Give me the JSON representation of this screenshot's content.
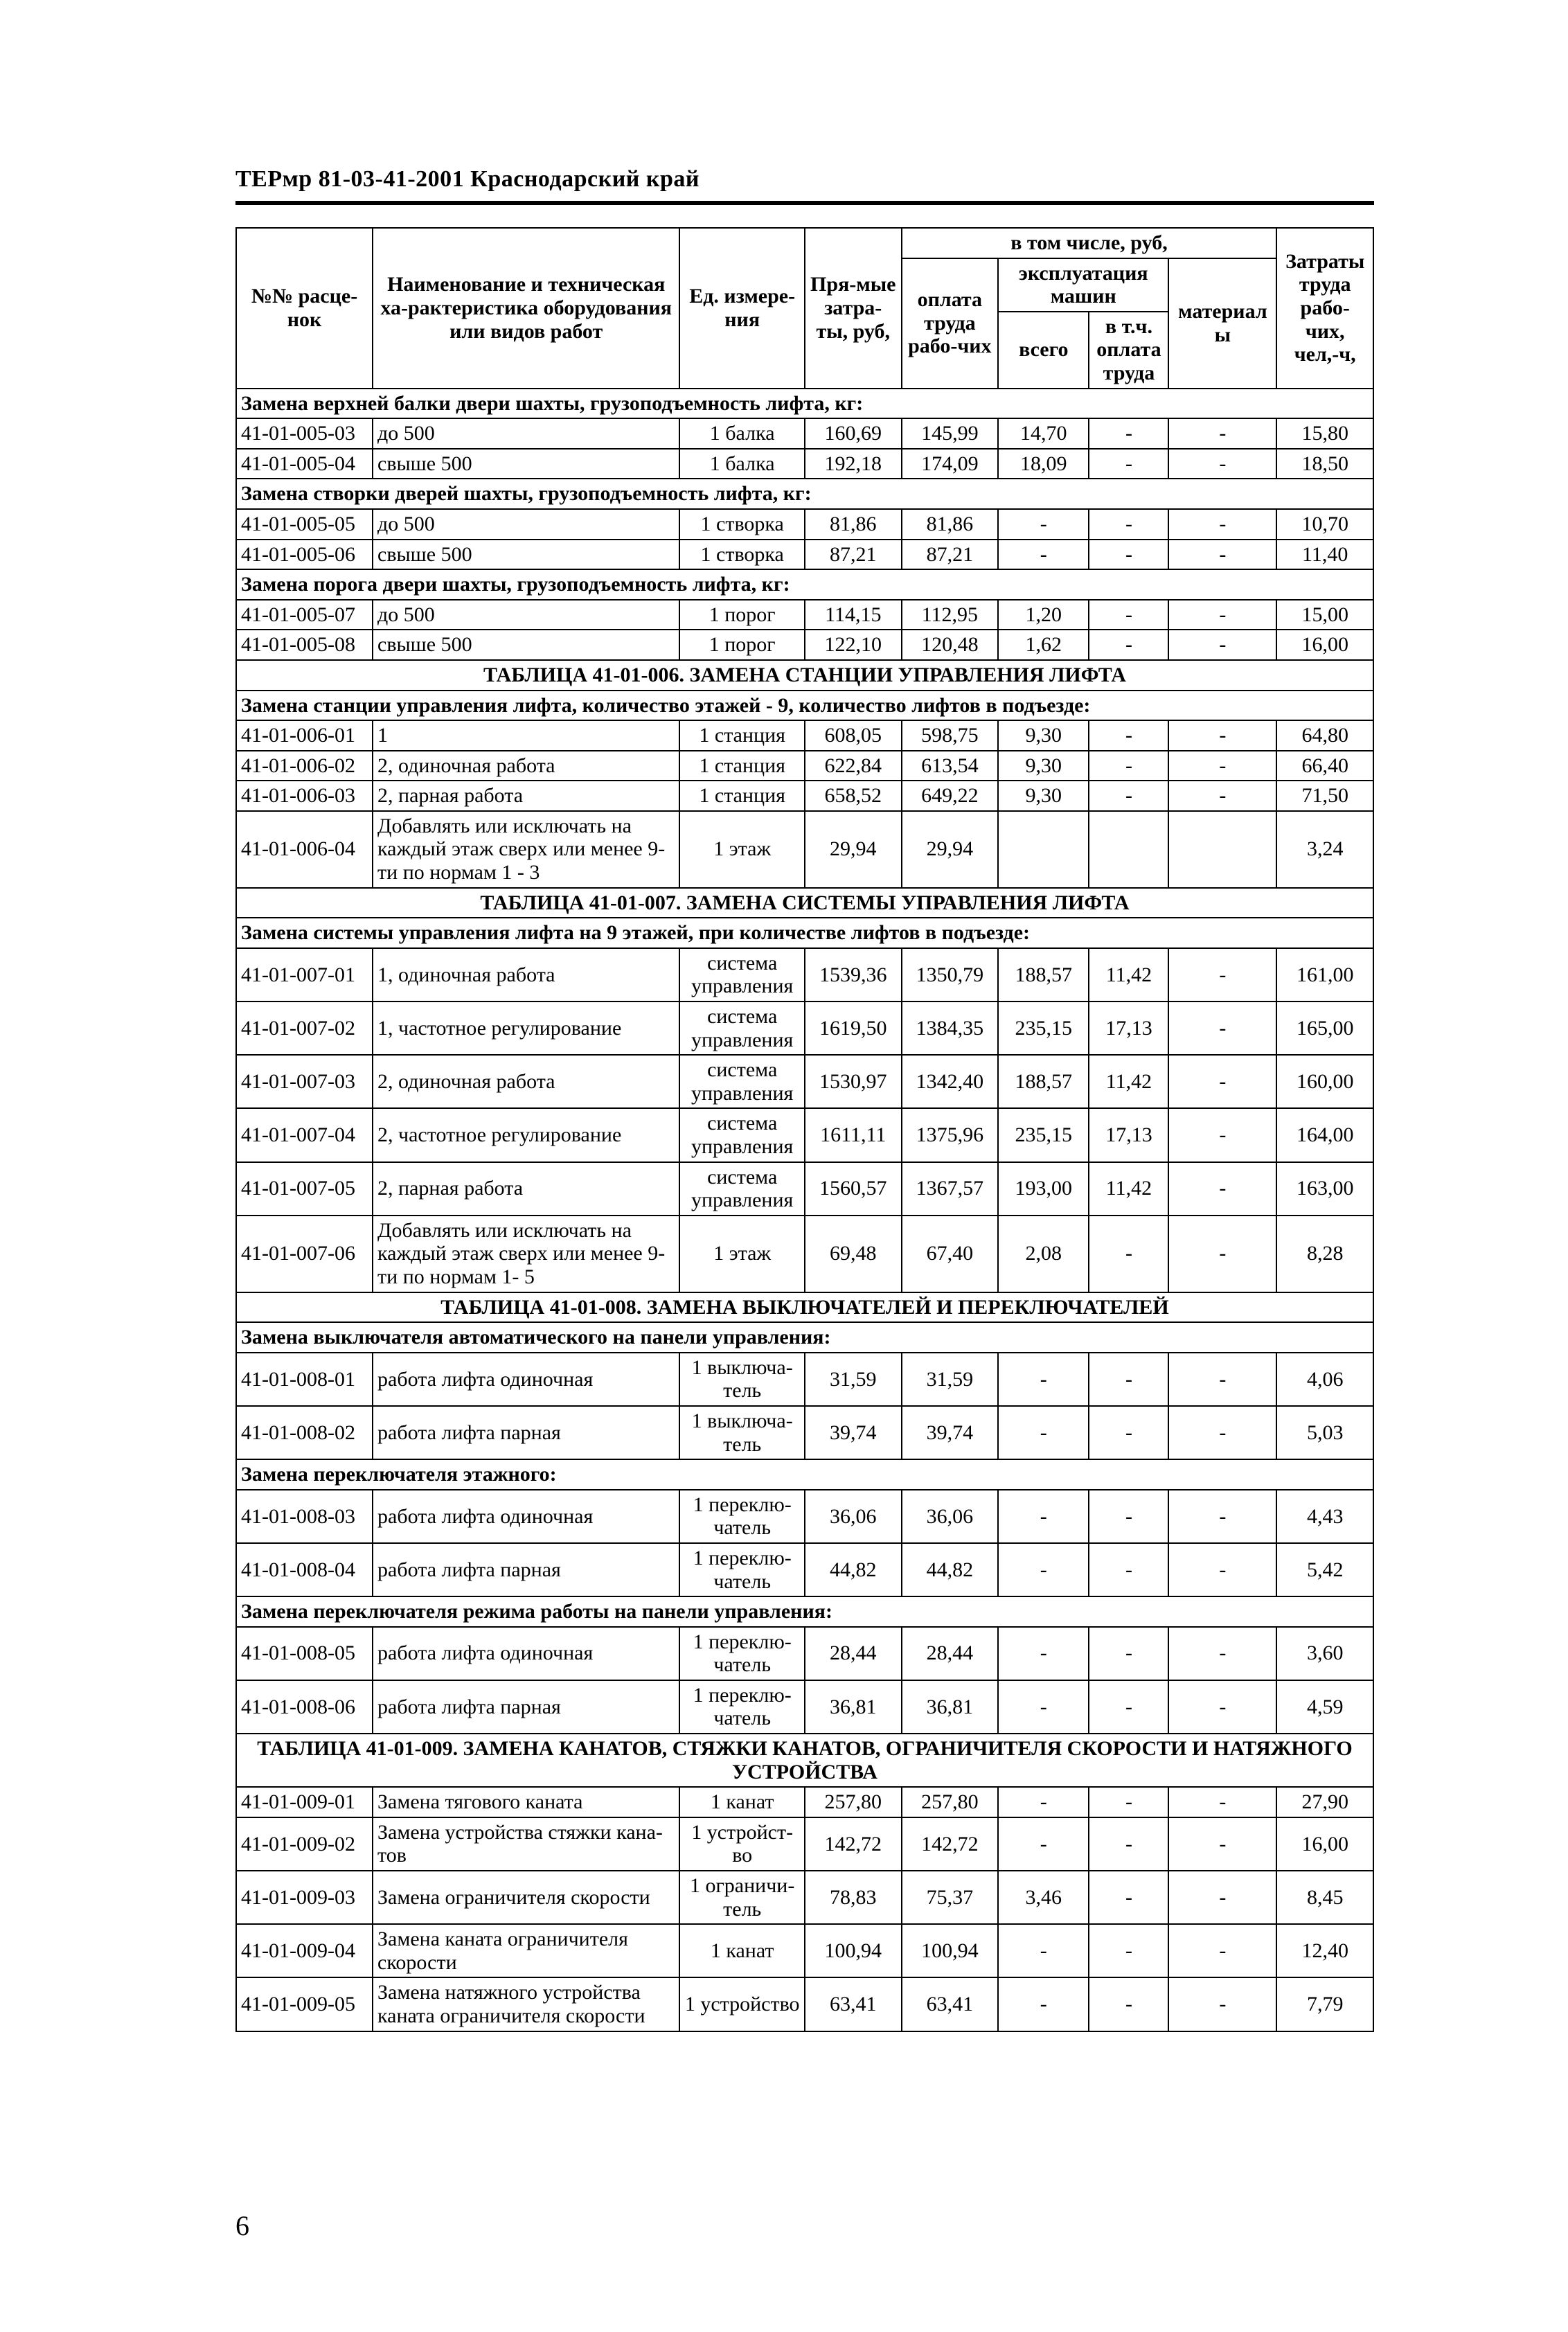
{
  "running_head": "ТЕРмр 81-03-41-2001   Краснодарский край",
  "page_number": "6",
  "head": {
    "col1": "№№ расце-нок",
    "col2": "Наименование и техническая ха-рактеристика оборудования или видов работ",
    "col3": "Ед. измере-ния",
    "col4": "Пря-мые затра-ты, руб,",
    "group5": "в том числе, руб,",
    "col5": "оплата труда рабо-чих",
    "group6": "эксплуатация машин",
    "col6a": "всего",
    "col6b": "в т.ч. оплата труда",
    "col7": "материалы",
    "col8": "Затраты труда рабо-чих, чел,-ч,"
  },
  "rows": [
    {
      "type": "section",
      "text": "Замена верхней балки двери шахты, грузоподъемность лифта, кг:"
    },
    {
      "type": "data",
      "c": [
        "41-01-005-03",
        "до 500",
        "1 балка",
        "160,69",
        "145,99",
        "14,70",
        "-",
        "-",
        "15,80"
      ]
    },
    {
      "type": "data",
      "c": [
        "41-01-005-04",
        "свыше 500",
        "1 балка",
        "192,18",
        "174,09",
        "18,09",
        "-",
        "-",
        "18,50"
      ]
    },
    {
      "type": "section",
      "text": "Замена створки дверей шахты, грузоподъемность лифта, кг:"
    },
    {
      "type": "data",
      "c": [
        "41-01-005-05",
        "до 500",
        "1 створка",
        "81,86",
        "81,86",
        "-",
        "-",
        "-",
        "10,70"
      ]
    },
    {
      "type": "data",
      "c": [
        "41-01-005-06",
        "свыше 500",
        "1 створка",
        "87,21",
        "87,21",
        "-",
        "-",
        "-",
        "11,40"
      ]
    },
    {
      "type": "section",
      "text": "Замена порога двери шахты, грузоподъемность лифта, кг:"
    },
    {
      "type": "data",
      "c": [
        "41-01-005-07",
        "до 500",
        "1 порог",
        "114,15",
        "112,95",
        "1,20",
        "-",
        "-",
        "15,00"
      ]
    },
    {
      "type": "data",
      "c": [
        "41-01-005-08",
        "свыше 500",
        "1 порог",
        "122,10",
        "120,48",
        "1,62",
        "-",
        "-",
        "16,00"
      ]
    },
    {
      "type": "title",
      "text": "ТАБЛИЦА 41-01-006. ЗАМЕНА СТАНЦИИ УПРАВЛЕНИЯ ЛИФТА"
    },
    {
      "type": "section",
      "text": "Замена станции управления лифта, количество этажей - 9, количество лифтов в подъезде:"
    },
    {
      "type": "data",
      "c": [
        "41-01-006-01",
        "1",
        "1 станция",
        "608,05",
        "598,75",
        "9,30",
        "-",
        "-",
        "64,80"
      ]
    },
    {
      "type": "data",
      "c": [
        "41-01-006-02",
        "2, одиночная работа",
        "1 станция",
        "622,84",
        "613,54",
        "9,30",
        "-",
        "-",
        "66,40"
      ]
    },
    {
      "type": "data",
      "c": [
        "41-01-006-03",
        "2, парная работа",
        "1 станция",
        "658,52",
        "649,22",
        "9,30",
        "-",
        "-",
        "71,50"
      ]
    },
    {
      "type": "data",
      "c": [
        "41-01-006-04",
        "Добавлять или исключать на каждый этаж сверх или менее 9-ти по нормам 1 - 3",
        "1 этаж",
        "29,94",
        "29,94",
        "",
        "",
        "",
        "3,24"
      ]
    },
    {
      "type": "title",
      "text": "ТАБЛИЦА 41-01-007. ЗАМЕНА СИСТЕМЫ УПРАВЛЕНИЯ ЛИФТА"
    },
    {
      "type": "section",
      "text": "Замена системы управления лифта на 9 этажей, при количестве лифтов в подъезде:"
    },
    {
      "type": "data",
      "c": [
        "41-01-007-01",
        "1, одиночная работа",
        "система управления",
        "1539,36",
        "1350,79",
        "188,57",
        "11,42",
        "-",
        "161,00"
      ]
    },
    {
      "type": "data",
      "c": [
        "41-01-007-02",
        "1, частотное регулирование",
        "система управления",
        "1619,50",
        "1384,35",
        "235,15",
        "17,13",
        "-",
        "165,00"
      ]
    },
    {
      "type": "data",
      "c": [
        "41-01-007-03",
        "2, одиночная работа",
        "система управления",
        "1530,97",
        "1342,40",
        "188,57",
        "11,42",
        "-",
        "160,00"
      ]
    },
    {
      "type": "data",
      "c": [
        "41-01-007-04",
        "2, частотное регулирование",
        "система управления",
        "1611,11",
        "1375,96",
        "235,15",
        "17,13",
        "-",
        "164,00"
      ]
    },
    {
      "type": "data",
      "c": [
        "41-01-007-05",
        "2, парная работа",
        "система управления",
        "1560,57",
        "1367,57",
        "193,00",
        "11,42",
        "-",
        "163,00"
      ]
    },
    {
      "type": "data",
      "c": [
        "41-01-007-06",
        "Добавлять или исключать на каждый этаж сверх или менее 9-ти по нормам 1- 5",
        "1 этаж",
        "69,48",
        "67,40",
        "2,08",
        "-",
        "-",
        "8,28"
      ]
    },
    {
      "type": "title",
      "text": "ТАБЛИЦА 41-01-008. ЗАМЕНА ВЫКЛЮЧАТЕЛЕЙ И ПЕРЕКЛЮЧАТЕЛЕЙ"
    },
    {
      "type": "section",
      "text": "Замена выключателя автоматического на панели управления:"
    },
    {
      "type": "data",
      "c": [
        "41-01-008-01",
        "работа лифта одиночная",
        "1 выключа-тель",
        "31,59",
        "31,59",
        "-",
        "-",
        "-",
        "4,06"
      ]
    },
    {
      "type": "data",
      "c": [
        "41-01-008-02",
        "работа лифта парная",
        "1 выключа-тель",
        "39,74",
        "39,74",
        "-",
        "-",
        "-",
        "5,03"
      ]
    },
    {
      "type": "section",
      "text": "Замена переключателя этажного:"
    },
    {
      "type": "data",
      "c": [
        "41-01-008-03",
        "работа лифта одиночная",
        "1 переклю-чатель",
        "36,06",
        "36,06",
        "-",
        "-",
        "-",
        "4,43"
      ]
    },
    {
      "type": "data",
      "c": [
        "41-01-008-04",
        "работа лифта парная",
        "1 переклю-чатель",
        "44,82",
        "44,82",
        "-",
        "-",
        "-",
        "5,42"
      ]
    },
    {
      "type": "section",
      "text": "Замена переключателя режима работы на панели управления:"
    },
    {
      "type": "data",
      "c": [
        "41-01-008-05",
        "работа лифта одиночная",
        "1 переклю-чатель",
        "28,44",
        "28,44",
        "-",
        "-",
        "-",
        "3,60"
      ]
    },
    {
      "type": "data",
      "c": [
        "41-01-008-06",
        "работа лифта парная",
        "1 переклю-чатель",
        "36,81",
        "36,81",
        "-",
        "-",
        "-",
        "4,59"
      ]
    },
    {
      "type": "title",
      "text": "ТАБЛИЦА 41-01-009. ЗАМЕНА КАНАТОВ, СТЯЖКИ КАНАТОВ, ОГРАНИЧИТЕЛЯ СКОРОСТИ И НАТЯЖНОГО УСТРОЙСТВА"
    },
    {
      "type": "data",
      "c": [
        "41-01-009-01",
        "Замена тягового каната",
        "1 канат",
        "257,80",
        "257,80",
        "-",
        "-",
        "-",
        "27,90"
      ]
    },
    {
      "type": "data",
      "c": [
        "41-01-009-02",
        "Замена устройства стяжки кана-тов",
        "1 устройст-во",
        "142,72",
        "142,72",
        "-",
        "-",
        "-",
        "16,00"
      ]
    },
    {
      "type": "data",
      "c": [
        "41-01-009-03",
        "Замена ограничителя скорости",
        "1 ограничи-тель",
        "78,83",
        "75,37",
        "3,46",
        "-",
        "-",
        "8,45"
      ]
    },
    {
      "type": "data",
      "c": [
        "41-01-009-04",
        "Замена каната ограничителя скорости",
        "1 канат",
        "100,94",
        "100,94",
        "-",
        "-",
        "-",
        "12,40"
      ]
    },
    {
      "type": "data",
      "c": [
        "41-01-009-05",
        "Замена натяжного устройства каната ограничителя скорости",
        "1 устройство",
        "63,41",
        "63,41",
        "-",
        "-",
        "-",
        "7,79"
      ]
    }
  ]
}
